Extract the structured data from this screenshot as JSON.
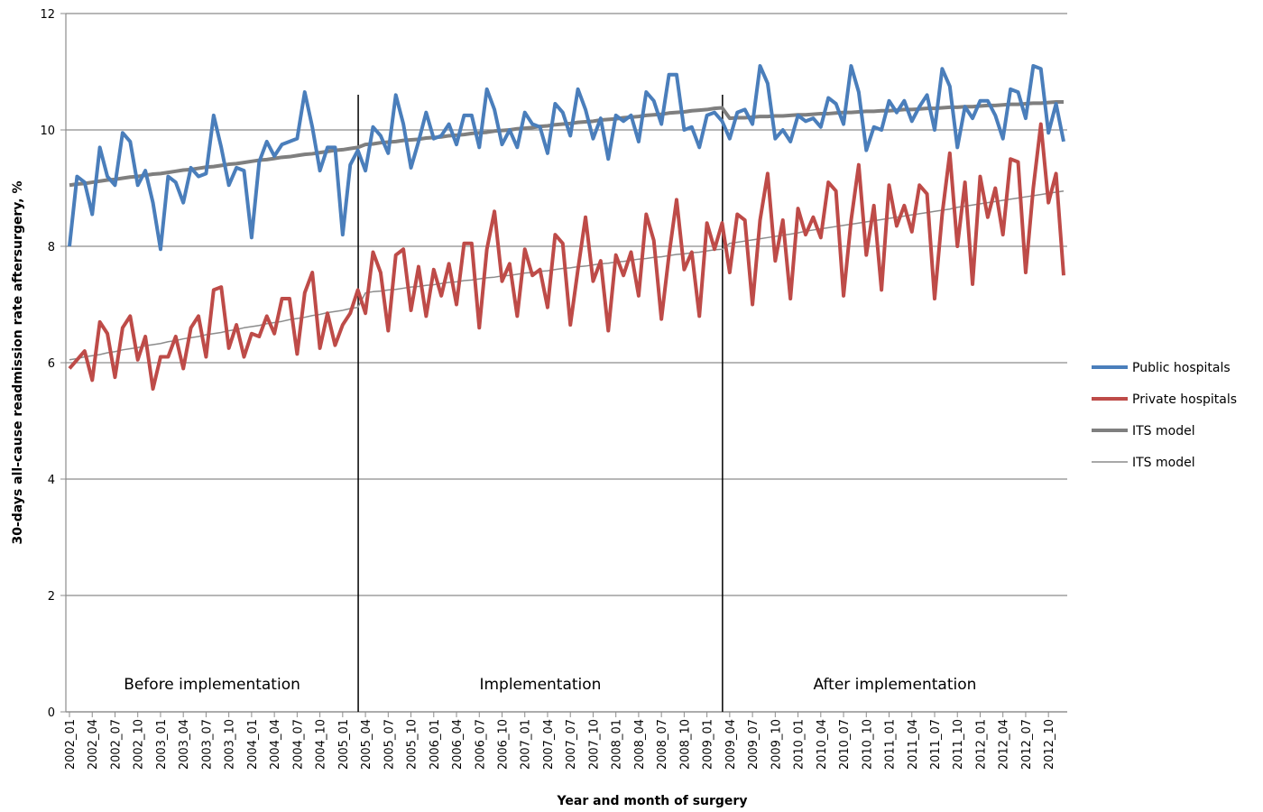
{
  "chart_data": {
    "type": "line",
    "ylabel": "30-days all-cause  readmission rate aftersurgery, %",
    "xlabel": "Year and month of surgery",
    "ylim": [
      0,
      12
    ],
    "yticks": [
      0,
      2,
      4,
      6,
      8,
      10,
      12
    ],
    "grid": true,
    "legend": "right",
    "categories": [
      "2002_01",
      null,
      null,
      "2002_04",
      null,
      null,
      "2002_07",
      null,
      null,
      "2002_10",
      null,
      null,
      "2003_01",
      null,
      null,
      "2003_04",
      null,
      null,
      "2003_07",
      null,
      null,
      "2003_10",
      null,
      null,
      "2004_01",
      null,
      null,
      "2004_04",
      null,
      null,
      "2004_07",
      null,
      null,
      "2004_10",
      null,
      null,
      "2005_01",
      null,
      null,
      "2005_04",
      null,
      null,
      "2005_07",
      null,
      null,
      "2005_10",
      null,
      null,
      "2006_01",
      null,
      null,
      "2006_04",
      null,
      null,
      "2006_07",
      null,
      null,
      "2006_10",
      null,
      null,
      "2007_01",
      null,
      null,
      "2007_04",
      null,
      null,
      "2007_07",
      null,
      null,
      "2007_10",
      null,
      null,
      "2008_01",
      null,
      null,
      "2008_04",
      null,
      null,
      "2008_07",
      null,
      null,
      "2008_10",
      null,
      null,
      "2009_01",
      null,
      null,
      "2009_04",
      null,
      null,
      "2009_07",
      null,
      null,
      "2009_10",
      null,
      null,
      "2010_01",
      null,
      null,
      "2010_04",
      null,
      null,
      "2010_07",
      null,
      null,
      "2010_10",
      null,
      null,
      "2011_01",
      null,
      null,
      "2011_04",
      null,
      null,
      "2011_07",
      null,
      null,
      "2011_10",
      null,
      null,
      "2012_01",
      null,
      null,
      "2012_04",
      null,
      null,
      "2012_07",
      null,
      null,
      "2012_10",
      null,
      null
    ],
    "phases": [
      {
        "label": "Before implementation",
        "from": "2002_01"
      },
      {
        "label": "Implementation",
        "from": "2005_04"
      },
      {
        "label": "After implementation",
        "from": "2009_04"
      }
    ],
    "series": [
      {
        "name": "Public hospitals",
        "color": "#4a7ebb",
        "width": 4,
        "values": [
          8.0,
          9.2,
          9.1,
          8.55,
          9.7,
          9.2,
          9.05,
          9.95,
          9.8,
          9.05,
          9.3,
          8.75,
          7.95,
          9.2,
          9.1,
          8.75,
          9.35,
          9.2,
          9.25,
          10.25,
          9.7,
          9.05,
          9.35,
          9.3,
          8.15,
          9.45,
          9.8,
          9.55,
          9.75,
          9.8,
          9.85,
          10.65,
          10.05,
          9.3,
          9.7,
          9.7,
          8.2,
          9.4,
          9.65,
          9.3,
          10.05,
          9.9,
          9.6,
          10.6,
          10.1,
          9.35,
          9.8,
          10.3,
          9.85,
          9.9,
          10.1,
          9.75,
          10.25,
          10.25,
          9.7,
          10.7,
          10.35,
          9.75,
          10.0,
          9.7,
          10.3,
          10.1,
          10.05,
          9.6,
          10.45,
          10.3,
          9.9,
          10.7,
          10.35,
          9.85,
          10.2,
          9.5,
          10.25,
          10.15,
          10.25,
          9.8,
          10.65,
          10.5,
          10.1,
          10.95,
          10.95,
          10.0,
          10.05,
          9.7,
          10.25,
          10.3,
          10.15,
          9.85,
          10.3,
          10.35,
          10.1,
          11.1,
          10.8,
          9.85,
          10.0,
          9.8,
          10.25,
          10.15,
          10.2,
          10.05,
          10.55,
          10.45,
          10.1,
          11.1,
          10.65,
          9.65,
          10.05,
          10.0,
          10.5,
          10.3,
          10.5,
          10.15,
          10.4,
          10.6,
          10.0,
          11.05,
          10.75,
          9.7,
          10.4,
          10.2,
          10.5,
          10.5,
          10.25,
          9.85,
          10.7,
          10.65,
          10.2,
          11.1,
          11.05,
          9.95,
          10.45,
          9.8
        ]
      },
      {
        "name": "Private hospitals",
        "color": "#be4b48",
        "width": 4,
        "values": [
          5.9,
          6.05,
          6.2,
          5.7,
          6.7,
          6.5,
          5.75,
          6.6,
          6.8,
          6.05,
          6.45,
          5.55,
          6.1,
          6.1,
          6.45,
          5.9,
          6.6,
          6.8,
          6.1,
          7.25,
          7.3,
          6.25,
          6.65,
          6.1,
          6.5,
          6.45,
          6.8,
          6.5,
          7.1,
          7.1,
          6.15,
          7.2,
          7.55,
          6.25,
          6.85,
          6.3,
          6.65,
          6.85,
          7.25,
          6.85,
          7.9,
          7.55,
          6.55,
          7.85,
          7.95,
          6.9,
          7.65,
          6.8,
          7.6,
          7.15,
          7.7,
          7.0,
          8.05,
          8.05,
          6.6,
          7.95,
          8.6,
          7.4,
          7.7,
          6.8,
          7.95,
          7.5,
          7.6,
          6.95,
          8.2,
          8.05,
          6.65,
          7.6,
          8.5,
          7.4,
          7.75,
          6.55,
          7.85,
          7.5,
          7.9,
          7.15,
          8.55,
          8.1,
          6.75,
          7.85,
          8.8,
          7.6,
          7.9,
          6.8,
          8.4,
          7.95,
          8.4,
          7.55,
          8.55,
          8.45,
          7.0,
          8.45,
          9.25,
          7.75,
          8.45,
          7.1,
          8.65,
          8.2,
          8.5,
          8.15,
          9.1,
          8.95,
          7.15,
          8.45,
          9.4,
          7.85,
          8.7,
          7.25,
          9.05,
          8.35,
          8.7,
          8.25,
          9.05,
          8.9,
          7.1,
          8.55,
          9.6,
          8.0,
          9.1,
          7.35,
          9.2,
          8.5,
          9.0,
          8.2,
          9.5,
          9.45,
          7.55,
          9.0,
          10.1,
          8.75,
          9.25,
          7.5
        ]
      },
      {
        "name": "ITS model",
        "color": "#7f7f7f",
        "width": 4,
        "values": [
          9.05,
          9.07,
          9.08,
          9.1,
          9.12,
          9.14,
          9.15,
          9.17,
          9.19,
          9.2,
          9.22,
          9.24,
          9.25,
          9.27,
          9.29,
          9.31,
          9.32,
          9.34,
          9.36,
          9.37,
          9.39,
          9.41,
          9.42,
          9.44,
          9.46,
          9.48,
          9.49,
          9.51,
          9.53,
          9.54,
          9.56,
          9.58,
          9.59,
          9.61,
          9.63,
          9.65,
          9.66,
          9.68,
          9.7,
          9.75,
          9.76,
          9.78,
          9.79,
          9.8,
          9.82,
          9.83,
          9.84,
          9.86,
          9.87,
          9.88,
          9.9,
          9.91,
          9.92,
          9.94,
          9.95,
          9.96,
          9.98,
          9.99,
          10.0,
          10.02,
          10.03,
          10.04,
          10.06,
          10.07,
          10.09,
          10.1,
          10.11,
          10.13,
          10.14,
          10.15,
          10.17,
          10.18,
          10.19,
          10.21,
          10.22,
          10.23,
          10.25,
          10.26,
          10.27,
          10.29,
          10.3,
          10.31,
          10.33,
          10.34,
          10.35,
          10.37,
          10.38,
          10.2,
          10.21,
          10.21,
          10.22,
          10.23,
          10.23,
          10.24,
          10.24,
          10.25,
          10.26,
          10.26,
          10.27,
          10.28,
          10.28,
          10.29,
          10.3,
          10.3,
          10.31,
          10.32,
          10.32,
          10.33,
          10.33,
          10.34,
          10.35,
          10.35,
          10.36,
          10.37,
          10.37,
          10.38,
          10.39,
          10.39,
          10.4,
          10.4,
          10.41,
          10.42,
          10.42,
          10.43,
          10.44,
          10.44,
          10.45,
          10.46,
          10.46,
          10.47,
          10.48,
          10.48
        ]
      },
      {
        "name": "ITS model",
        "color": "#8c8c8c",
        "width": 1.5,
        "values": [
          6.05,
          6.07,
          6.1,
          6.12,
          6.14,
          6.17,
          6.19,
          6.22,
          6.24,
          6.26,
          6.29,
          6.31,
          6.33,
          6.36,
          6.38,
          6.41,
          6.43,
          6.45,
          6.48,
          6.5,
          6.52,
          6.55,
          6.57,
          6.6,
          6.62,
          6.64,
          6.67,
          6.69,
          6.71,
          6.74,
          6.76,
          6.78,
          6.81,
          6.83,
          6.86,
          6.88,
          6.9,
          6.93,
          6.95,
          7.2,
          7.22,
          7.23,
          7.25,
          7.26,
          7.28,
          7.3,
          7.31,
          7.33,
          7.34,
          7.36,
          7.38,
          7.39,
          7.41,
          7.42,
          7.44,
          7.46,
          7.47,
          7.49,
          7.5,
          7.52,
          7.54,
          7.55,
          7.57,
          7.58,
          7.6,
          7.62,
          7.63,
          7.65,
          7.66,
          7.68,
          7.7,
          7.71,
          7.73,
          7.74,
          7.76,
          7.78,
          7.79,
          7.81,
          7.82,
          7.84,
          7.86,
          7.87,
          7.89,
          7.9,
          7.92,
          7.94,
          7.95,
          8.05,
          8.07,
          8.09,
          8.11,
          8.13,
          8.15,
          8.17,
          8.19,
          8.21,
          8.23,
          8.26,
          8.28,
          8.3,
          8.32,
          8.34,
          8.36,
          8.38,
          8.4,
          8.42,
          8.44,
          8.46,
          8.48,
          8.5,
          8.52,
          8.54,
          8.56,
          8.58,
          8.6,
          8.62,
          8.64,
          8.67,
          8.69,
          8.71,
          8.73,
          8.75,
          8.77,
          8.79,
          8.81,
          8.83,
          8.85,
          8.87,
          8.89,
          8.91,
          8.93,
          8.95
        ]
      }
    ]
  }
}
